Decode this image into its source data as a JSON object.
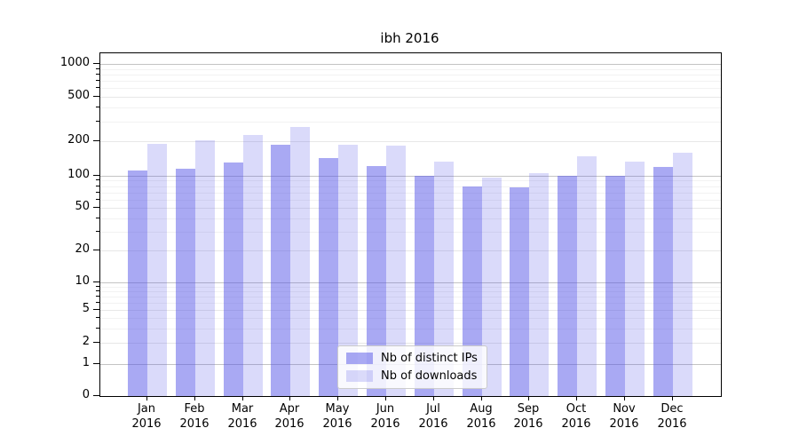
{
  "title": "ibh 2016",
  "colors": {
    "ips_rgba": "rgba(80,80,230,0.49)",
    "downloads_rgba": "rgba(80,80,230,0.21)",
    "grid_decade": "#c4c4c4",
    "grid_labeled": "#e7e7e7",
    "grid_minor": "#f2f2f2"
  },
  "legend": {
    "items": [
      {
        "key": "ips",
        "label": "Nb of distinct IPs"
      },
      {
        "key": "downloads",
        "label": "Nb of downloads"
      }
    ]
  },
  "y_axis": {
    "tick_labels": [
      "0",
      "1",
      "2",
      "5",
      "10",
      "20",
      "50",
      "100",
      "200",
      "500",
      "1000"
    ],
    "tick_values": [
      0,
      1,
      2,
      5,
      10,
      20,
      50,
      100,
      200,
      500,
      1000
    ]
  },
  "x_axis": {
    "months": [
      {
        "key": "jan",
        "line1": "Jan",
        "line2": "2016"
      },
      {
        "key": "feb",
        "line1": "Feb",
        "line2": "2016"
      },
      {
        "key": "mar",
        "line1": "Mar",
        "line2": "2016"
      },
      {
        "key": "apr",
        "line1": "Apr",
        "line2": "2016"
      },
      {
        "key": "may",
        "line1": "May",
        "line2": "2016"
      },
      {
        "key": "jun",
        "line1": "Jun",
        "line2": "2016"
      },
      {
        "key": "jul",
        "line1": "Jul",
        "line2": "2016"
      },
      {
        "key": "aug",
        "line1": "Aug",
        "line2": "2016"
      },
      {
        "key": "sep",
        "line1": "Sep",
        "line2": "2016"
      },
      {
        "key": "oct",
        "line1": "Oct",
        "line2": "2016"
      },
      {
        "key": "nov",
        "line1": "Nov",
        "line2": "2016"
      },
      {
        "key": "dec",
        "line1": "Dec",
        "line2": "2016"
      }
    ]
  },
  "chart_data": {
    "type": "bar",
    "title": "ibh 2016",
    "categories": [
      "Jan 2016",
      "Feb 2016",
      "Mar 2016",
      "Apr 2016",
      "May 2016",
      "Jun 2016",
      "Jul 2016",
      "Aug 2016",
      "Sep 2016",
      "Oct 2016",
      "Nov 2016",
      "Dec 2016"
    ],
    "series": [
      {
        "name": "Nb of distinct IPs",
        "values": [
          112,
          115,
          130,
          187,
          143,
          121,
          100,
          80,
          78,
          100,
          100,
          119
        ]
      },
      {
        "name": "Nb of downloads",
        "values": [
          188,
          205,
          228,
          270,
          186,
          183,
          132,
          97,
          106,
          147,
          134,
          158
        ]
      }
    ],
    "xlabel": "",
    "ylabel": "",
    "yscale": "symlog",
    "yticks": [
      0,
      1,
      2,
      5,
      10,
      20,
      50,
      100,
      200,
      500,
      1000
    ],
    "ylim": [
      0,
      1258
    ],
    "grid": true,
    "legend_position": "lower center"
  }
}
